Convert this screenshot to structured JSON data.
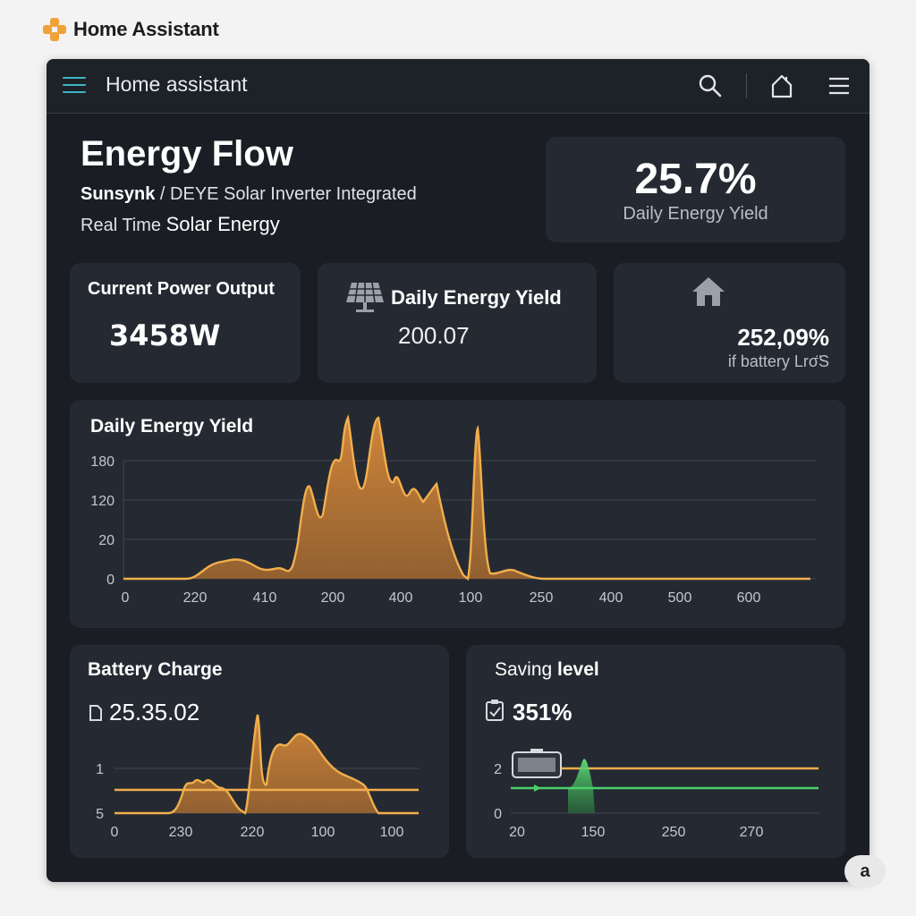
{
  "brand": {
    "name": "Home Assistant"
  },
  "topbar": {
    "title": "Home assistant",
    "icons": [
      "menu-icon",
      "search-icon",
      "home-icon",
      "more-menu-icon"
    ]
  },
  "hero": {
    "title": "Energy Flow",
    "subtitle_bold": "Sunsynk",
    "subtitle_rest": " / DEYE Solar Inverter Integrated",
    "subtitle2_plain": "Real Time ",
    "subtitle2_emph": "Solar Energy"
  },
  "yield_summary": {
    "value": "25.7%",
    "label": "Daily Energy Yield"
  },
  "power_card": {
    "title": "Current Power Output",
    "value": "3458W"
  },
  "yield_card": {
    "title": "Daily Energy Yield",
    "value": "200.07",
    "icon": "solar-panel-icon"
  },
  "battery_card": {
    "value": "252,09%",
    "label": "if battery Lrσ̈S",
    "icon": "house-icon"
  },
  "main_chart": {
    "title": "Daily Energy Yield",
    "y_ticks": [
      "180",
      "120",
      "20",
      "0"
    ],
    "x_ticks": [
      "0",
      "220",
      "410",
      "200",
      "400",
      "100",
      "250",
      "400",
      "500",
      "600"
    ]
  },
  "battery_chart": {
    "title": "Battery Charge",
    "value": "25.35.02",
    "y_ticks": [
      "1",
      "5"
    ],
    "x_ticks": [
      "0",
      "230",
      "220",
      "100",
      "100"
    ]
  },
  "saving_chart": {
    "title_plain": "Saving ",
    "title_emph": "level",
    "value": "351%",
    "y_ticks": [
      "2",
      "0"
    ],
    "x_ticks": [
      "20",
      "150",
      "250",
      "270"
    ]
  },
  "fab": {
    "label": "a"
  },
  "colors": {
    "accent_orange": "#e89a3c",
    "accent_green": "#4ccf6a",
    "teal": "#3fb4c4",
    "panel": "#252a32"
  }
}
